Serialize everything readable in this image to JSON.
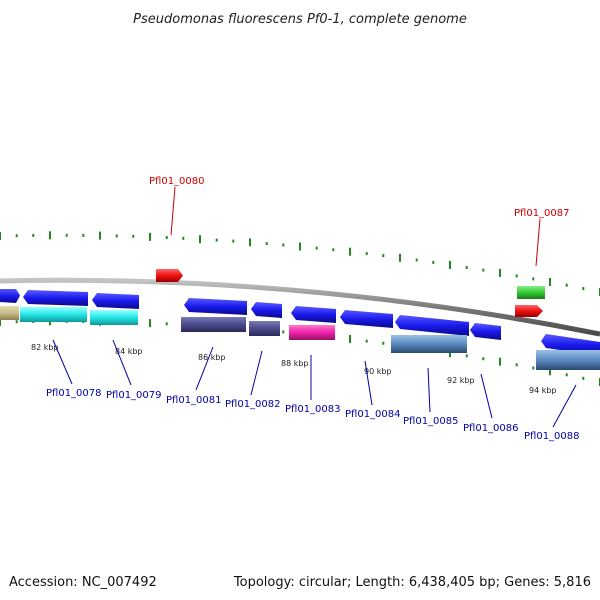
{
  "title": "Pseudomonas fluorescens Pf0-1, complete genome",
  "footer": {
    "accession": "Accession: NC_007492",
    "topology": "Topology: circular; Length: 6,438,405 bp; Genes: 5,816"
  },
  "scale_labels": [
    "82 kbp",
    "84 kbp",
    "86 kbp",
    "88 kbp",
    "90 kbp",
    "92 kbp",
    "94 kbp"
  ],
  "loci_top": [
    "Pfl01_0080",
    "Pfl01_0087"
  ],
  "loci_bottom": [
    "Pfl01_0078",
    "Pfl01_0079",
    "Pfl01_0081",
    "Pfl01_0082",
    "Pfl01_0083",
    "Pfl01_0084",
    "Pfl01_0085",
    "Pfl01_0086",
    "Pfl01_0088"
  ],
  "colors": {
    "backbone": "#8a8a8a",
    "cds_blue": "#1a1aee",
    "rna_red": "#ee1111",
    "gene_green": "#33cc33",
    "cyan": "#22e6e6",
    "khaki": "#c8be8a",
    "dark_slate": "#4a4a8a",
    "magenta": "#ee22aa",
    "steel": "#5a8ac0",
    "tick": "#228822",
    "label_red": "#cc0000",
    "label_blue": "#0000aa"
  }
}
